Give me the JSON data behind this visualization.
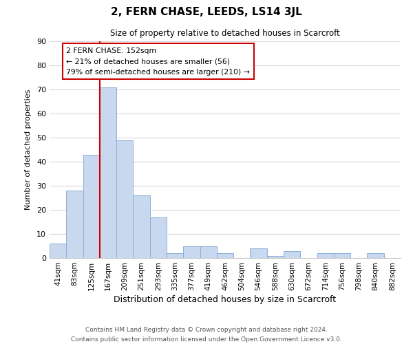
{
  "title": "2, FERN CHASE, LEEDS, LS14 3JL",
  "subtitle": "Size of property relative to detached houses in Scarcroft",
  "xlabel": "Distribution of detached houses by size in Scarcroft",
  "ylabel": "Number of detached properties",
  "bar_labels": [
    "41sqm",
    "83sqm",
    "125sqm",
    "167sqm",
    "209sqm",
    "251sqm",
    "293sqm",
    "335sqm",
    "377sqm",
    "419sqm",
    "462sqm",
    "504sqm",
    "546sqm",
    "588sqm",
    "630sqm",
    "672sqm",
    "714sqm",
    "756sqm",
    "798sqm",
    "840sqm",
    "882sqm"
  ],
  "bar_values": [
    6,
    28,
    43,
    71,
    49,
    26,
    17,
    2,
    5,
    5,
    2,
    0,
    4,
    1,
    3,
    0,
    2,
    2,
    0,
    2,
    0
  ],
  "bar_color": "#c8d8ee",
  "bar_edge_color": "#8ab0d8",
  "ylim": [
    0,
    90
  ],
  "yticks": [
    0,
    10,
    20,
    30,
    40,
    50,
    60,
    70,
    80,
    90
  ],
  "vline_color": "#cc0000",
  "vline_pos": 2.5,
  "annotation_title": "2 FERN CHASE: 152sqm",
  "annotation_line1": "← 21% of detached houses are smaller (56)",
  "annotation_line2": "79% of semi-detached houses are larger (210) →",
  "footer1": "Contains HM Land Registry data © Crown copyright and database right 2024.",
  "footer2": "Contains public sector information licensed under the Open Government Licence v3.0.",
  "fig_bg_color": "#ffffff",
  "plot_bg_color": "#ffffff",
  "grid_color": "#d8d8d8"
}
